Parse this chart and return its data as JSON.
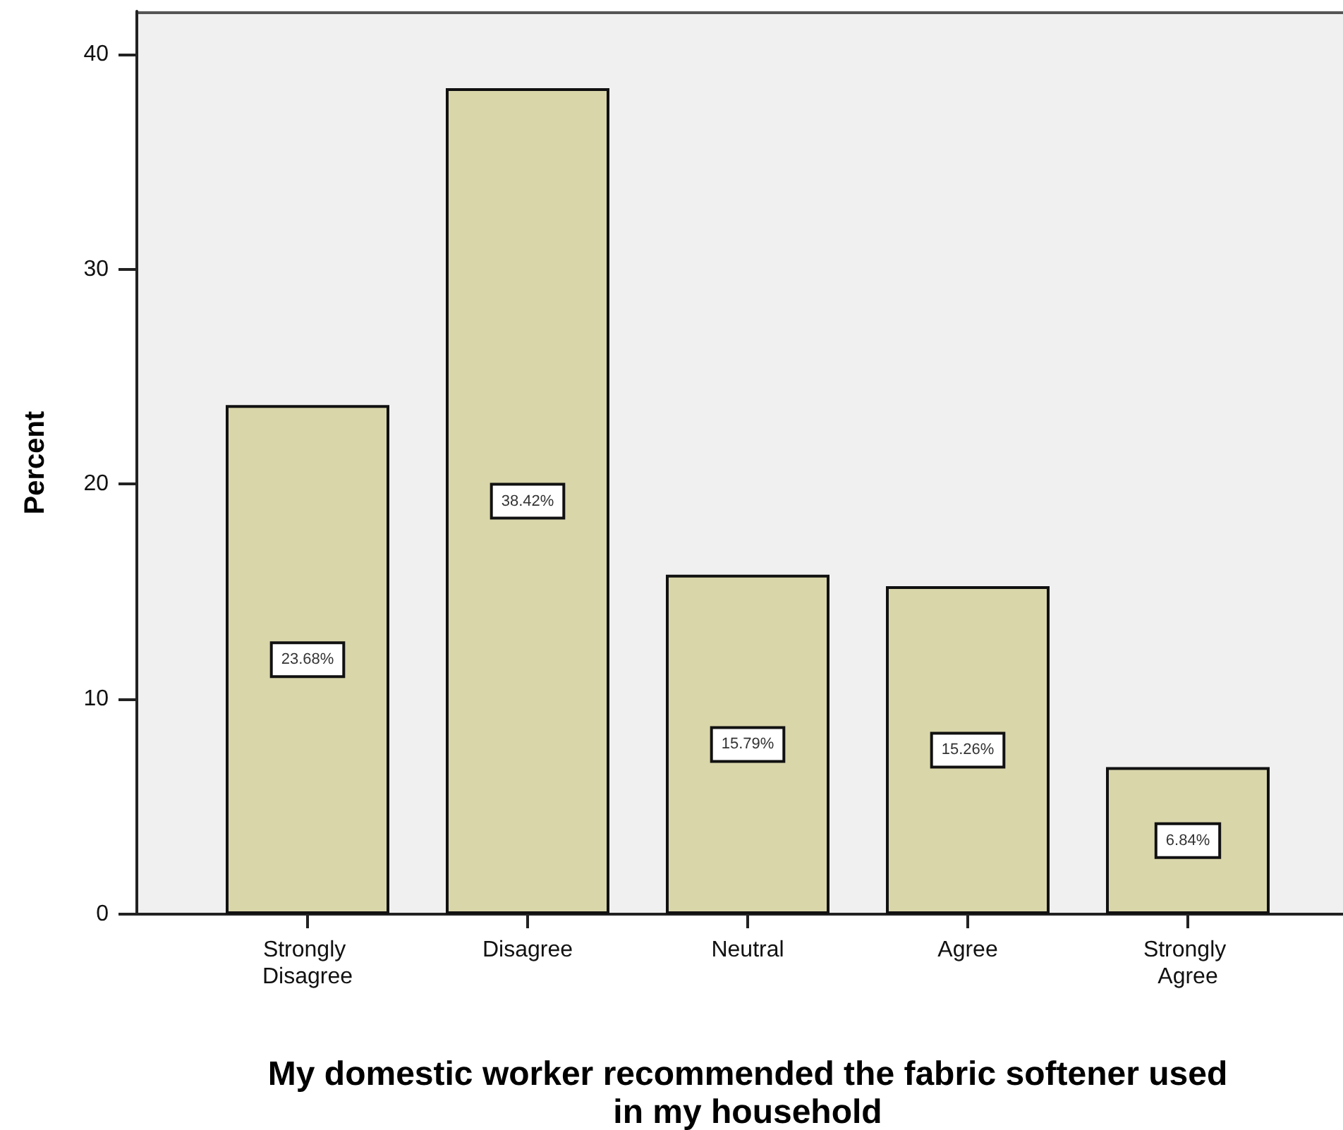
{
  "chart_data": {
    "type": "bar",
    "ylabel": "Percent",
    "xlabel": "My domestic worker recommended the fabric softener used in my household",
    "categories": [
      "Strongly Disagree",
      "Disagree",
      "Neutral",
      "Agree",
      "Strongly Agree"
    ],
    "values": [
      23.68,
      38.42,
      15.79,
      15.26,
      6.84
    ],
    "color": "#d9d6aa",
    "value_labels": [
      "23.68%",
      "38.42%",
      "15.79%",
      "15.26%",
      "6.84%"
    ],
    "ylim": [
      0,
      42
    ],
    "yticks": [
      0,
      10,
      20,
      30,
      40
    ]
  }
}
